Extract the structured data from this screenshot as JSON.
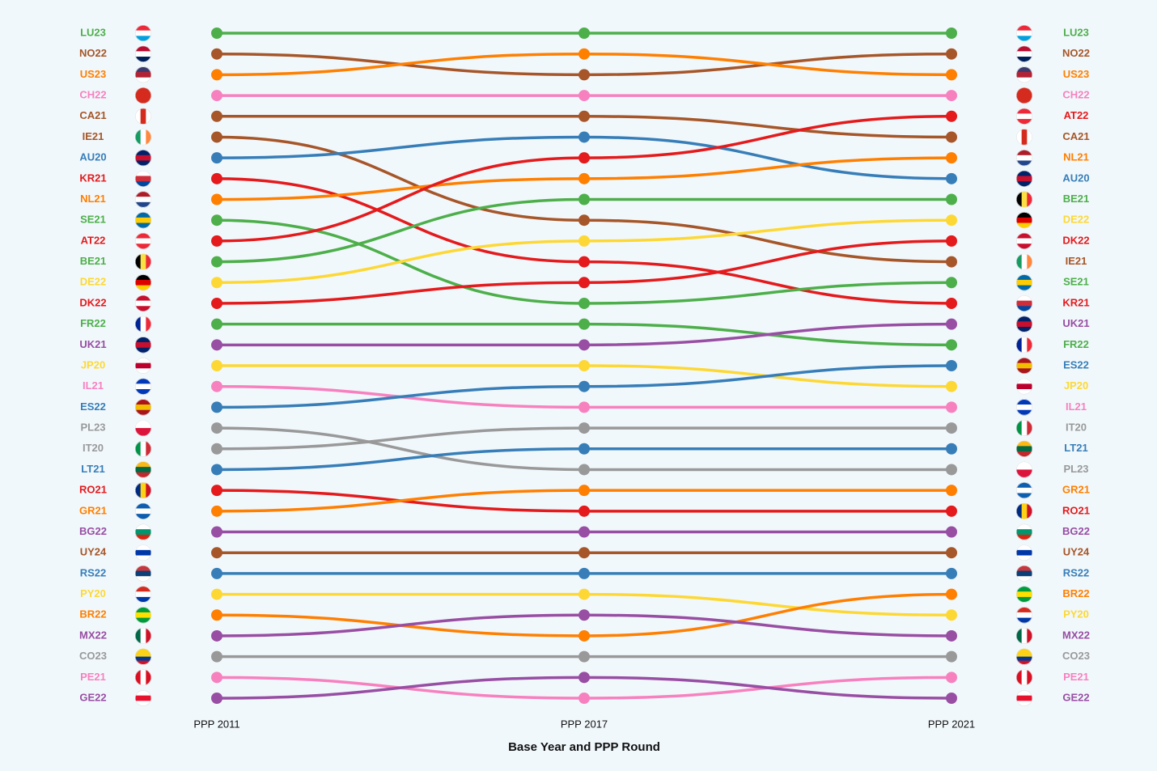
{
  "chart_data": {
    "type": "bump",
    "x": [
      "PPP 2011",
      "PPP 2017",
      "PPP 2021"
    ],
    "xlabel": "Base Year and PPP Round",
    "ylim": [
      1,
      33
    ],
    "y_inverted": true,
    "series": [
      {
        "name": "LU23",
        "color": "#4daf4a",
        "values": [
          1,
          1,
          1
        ]
      },
      {
        "name": "NO22",
        "color": "#a65628",
        "values": [
          2,
          3,
          2
        ]
      },
      {
        "name": "US23",
        "color": "#ff7f00",
        "values": [
          3,
          2,
          3
        ]
      },
      {
        "name": "CH22",
        "color": "#f781bf",
        "values": [
          4,
          4,
          4
        ]
      },
      {
        "name": "CA21",
        "color": "#a65628",
        "values": [
          5,
          5,
          6
        ]
      },
      {
        "name": "IE21",
        "color": "#a65628",
        "values": [
          6,
          10,
          12
        ]
      },
      {
        "name": "AU20",
        "color": "#377eb8",
        "values": [
          7,
          6,
          8
        ]
      },
      {
        "name": "KR21",
        "color": "#e41a1c",
        "values": [
          8,
          12,
          14
        ]
      },
      {
        "name": "NL21",
        "color": "#ff7f00",
        "values": [
          9,
          8,
          7
        ]
      },
      {
        "name": "SE21",
        "color": "#4daf4a",
        "values": [
          10,
          14,
          13
        ]
      },
      {
        "name": "AT22",
        "color": "#e41a1c",
        "values": [
          11,
          7,
          5
        ]
      },
      {
        "name": "BE21",
        "color": "#4daf4a",
        "values": [
          12,
          9,
          9
        ]
      },
      {
        "name": "DE22",
        "color": "#fdd835",
        "values": [
          13,
          11,
          10
        ]
      },
      {
        "name": "DK22",
        "color": "#e41a1c",
        "values": [
          14,
          13,
          11
        ]
      },
      {
        "name": "FR22",
        "color": "#4daf4a",
        "values": [
          15,
          15,
          16
        ]
      },
      {
        "name": "UK21",
        "color": "#984ea3",
        "values": [
          16,
          16,
          15
        ]
      },
      {
        "name": "JP20",
        "color": "#fdd835",
        "values": [
          17,
          17,
          18
        ]
      },
      {
        "name": "IL21",
        "color": "#f781bf",
        "values": [
          18,
          19,
          19
        ]
      },
      {
        "name": "ES22",
        "color": "#377eb8",
        "values": [
          19,
          18,
          17
        ]
      },
      {
        "name": "PL23",
        "color": "#999999",
        "values": [
          20,
          22,
          22
        ]
      },
      {
        "name": "IT20",
        "color": "#999999",
        "values": [
          21,
          20,
          20
        ]
      },
      {
        "name": "LT21",
        "color": "#377eb8",
        "values": [
          22,
          21,
          21
        ]
      },
      {
        "name": "RO21",
        "color": "#e41a1c",
        "values": [
          23,
          24,
          24
        ]
      },
      {
        "name": "GR21",
        "color": "#ff7f00",
        "values": [
          24,
          23,
          23
        ]
      },
      {
        "name": "BG22",
        "color": "#984ea3",
        "values": [
          25,
          25,
          25
        ]
      },
      {
        "name": "UY24",
        "color": "#a65628",
        "values": [
          26,
          26,
          26
        ]
      },
      {
        "name": "RS22",
        "color": "#377eb8",
        "values": [
          27,
          27,
          27
        ]
      },
      {
        "name": "PY20",
        "color": "#fdd835",
        "values": [
          28,
          28,
          29
        ]
      },
      {
        "name": "BR22",
        "color": "#ff7f00",
        "values": [
          29,
          30,
          28
        ]
      },
      {
        "name": "MX22",
        "color": "#984ea3",
        "values": [
          30,
          29,
          30
        ]
      },
      {
        "name": "CO23",
        "color": "#999999",
        "values": [
          31,
          31,
          31
        ]
      },
      {
        "name": "PE21",
        "color": "#f781bf",
        "values": [
          32,
          33,
          32
        ]
      },
      {
        "name": "GE22",
        "color": "#984ea3",
        "values": [
          33,
          32,
          33
        ]
      }
    ]
  }
}
